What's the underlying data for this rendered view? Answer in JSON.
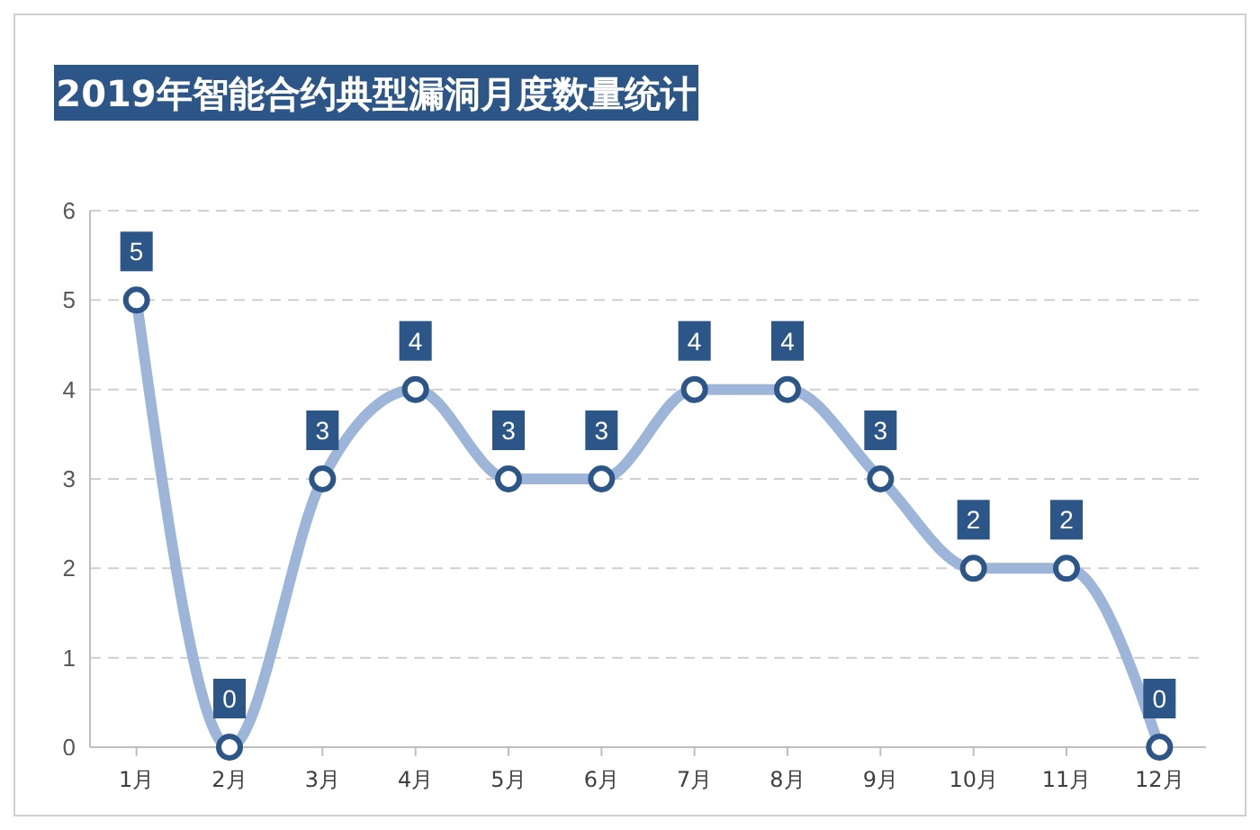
{
  "chart_data": {
    "type": "line",
    "title": "2019年智能合约典型漏洞月度数量统计",
    "categories": [
      "1月",
      "2月",
      "3月",
      "4月",
      "5月",
      "6月",
      "7月",
      "8月",
      "9月",
      "10月",
      "11月",
      "12月"
    ],
    "series": [
      {
        "color": "#9db5d9",
        "values": [
          5,
          0,
          3,
          4,
          3,
          3,
          4,
          4,
          3,
          2,
          2,
          0
        ]
      }
    ],
    "ylim": [
      0,
      6
    ],
    "yticks": [
      0,
      1,
      2,
      3,
      4,
      5,
      6
    ],
    "grid": "y",
    "marker": "circle",
    "line_style": "solid",
    "data_labels": true
  }
}
